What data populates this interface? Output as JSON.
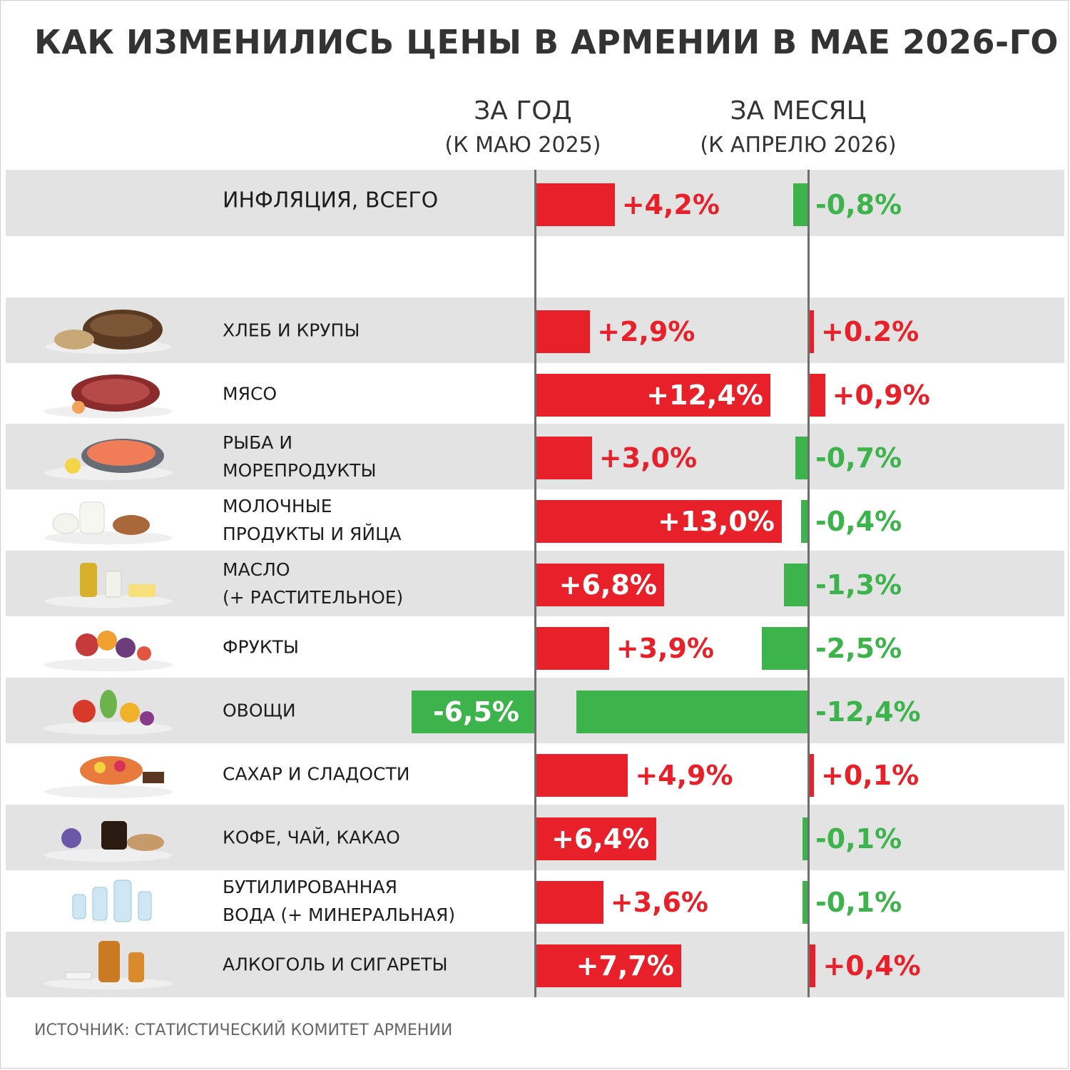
{
  "title": "КАК ИЗМЕНИЛИСЬ ЦЕНЫ В АРМЕНИИ В МАЕ 2026-ГО",
  "columns": {
    "year": {
      "heading": "ЗА ГОД",
      "subheading": "(К МАЮ 2025)"
    },
    "month": {
      "heading": "ЗА МЕСЯЦ",
      "subheading": "(К АПРЕЛЮ 2026)"
    }
  },
  "source": "ИСТОЧНИК: СТАТИСТИЧЕСКИЙ КОМИТЕТ АРМЕНИИ",
  "colors": {
    "increase": "#e8202a",
    "decrease": "#3cb44b",
    "text_dark": "#333333",
    "row_shade": "#e3e3e3"
  },
  "chart_data": {
    "type": "bar",
    "series": [
      {
        "name": "ЗА ГОД (К МАЮ 2025)",
        "values": [
          4.2,
          2.9,
          12.4,
          3.0,
          13.0,
          6.8,
          3.9,
          -6.5,
          4.9,
          6.4,
          3.6,
          7.7
        ]
      },
      {
        "name": "ЗА МЕСЯЦ (К АПРЕЛЮ 2026)",
        "values": [
          -0.8,
          0.2,
          0.9,
          -0.7,
          -0.4,
          -1.3,
          -2.5,
          -12.4,
          0.1,
          -0.1,
          -0.1,
          0.4
        ]
      }
    ],
    "categories": [
      "ИНФЛЯЦИЯ, ВСЕГО",
      "ХЛЕБ И КРУПЫ",
      "МЯСО",
      "РЫБА И МОРЕПРОДУКТЫ",
      "МОЛОЧНЫЕ ПРОДУКТЫ И ЯЙЦА",
      "МАСЛО (+ РАСТИТЕЛЬНОЕ)",
      "ФРУКТЫ",
      "ОВОЩИ",
      "САХАР И СЛАДОСТИ",
      "КОФЕ, ЧАЙ, КАКАО",
      "БУТИЛИРОВАННАЯ ВОДА (+ МИНЕРАЛЬНАЯ)",
      "АЛКОГОЛЬ И СИГАРЕТЫ"
    ],
    "rows": [
      {
        "label": "ИНФЛЯЦИЯ, ВСЕГО",
        "icon": "",
        "year": 4.2,
        "year_label": "+4,2%",
        "month": -0.8,
        "month_label": "-0,8%"
      },
      {
        "label": "ХЛЕБ И КРУПЫ",
        "icon": "bread-icon",
        "year": 2.9,
        "year_label": "+2,9%",
        "month": 0.2,
        "month_label": "+0.2%"
      },
      {
        "label": "МЯСО",
        "icon": "meat-icon",
        "year": 12.4,
        "year_label": "+12,4%",
        "month": 0.9,
        "month_label": "+0,9%"
      },
      {
        "label": "РЫБА И\nМОРЕПРОДУКТЫ",
        "icon": "fish-icon",
        "year": 3.0,
        "year_label": "+3,0%",
        "month": -0.7,
        "month_label": "-0,7%"
      },
      {
        "label": "МОЛОЧНЫЕ\nПРОДУКТЫ И ЯЙЦА",
        "icon": "dairy-icon",
        "year": 13.0,
        "year_label": "+13,0%",
        "month": -0.4,
        "month_label": "-0,4%"
      },
      {
        "label": "МАСЛО\n(+ РАСТИТЕЛЬНОЕ)",
        "icon": "oil-icon",
        "year": 6.8,
        "year_label": "+6,8%",
        "month": -1.3,
        "month_label": "-1,3%"
      },
      {
        "label": "ФРУКТЫ",
        "icon": "fruit-icon",
        "year": 3.9,
        "year_label": "+3,9%",
        "month": -2.5,
        "month_label": "-2,5%"
      },
      {
        "label": "ОВОЩИ",
        "icon": "vegetables-icon",
        "year": -6.5,
        "year_label": "-6,5%",
        "month": -12.4,
        "month_label": "-12,4%"
      },
      {
        "label": "САХАР И СЛАДОСТИ",
        "icon": "sweets-icon",
        "year": 4.9,
        "year_label": "+4,9%",
        "month": 0.1,
        "month_label": "+0,1%"
      },
      {
        "label": "КОФЕ, ЧАЙ, КАКАО",
        "icon": "coffee-icon",
        "year": 6.4,
        "year_label": "+6,4%",
        "month": -0.1,
        "month_label": "-0,1%"
      },
      {
        "label": "БУТИЛИРОВАННАЯ\nВОДА (+ МИНЕРАЛЬНАЯ)",
        "icon": "water-bottle-icon",
        "year": 3.6,
        "year_label": "+3,6%",
        "month": -0.1,
        "month_label": "-0,1%"
      },
      {
        "label": "АЛКОГОЛЬ И СИГАРЕТЫ",
        "icon": "alcohol-icon",
        "year": 7.7,
        "year_label": "+7,7%",
        "month": 0.4,
        "month_label": "+0,4%"
      }
    ]
  }
}
